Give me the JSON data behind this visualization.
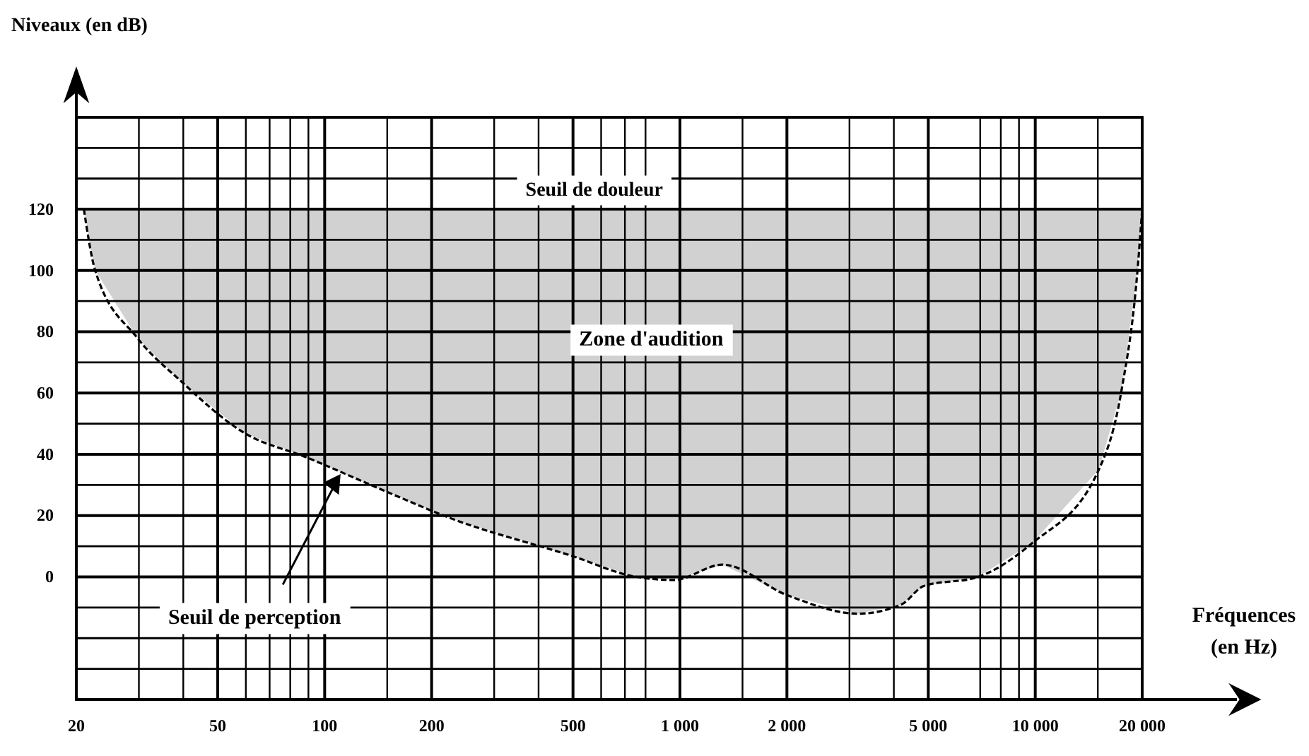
{
  "chart_data": {
    "type": "line",
    "xlabel": "Fréquences (en Hz)",
    "ylabel": "Niveaux (en dB)",
    "log": "x",
    "grid": true,
    "marker": "none",
    "line_style": "dashed",
    "xlim": [
      20,
      20000
    ],
    "ylim": [
      -40,
      150
    ],
    "xticks": [
      20,
      {
        "value": 30,
        "label": null
      },
      {
        "value": 40,
        "label": null
      },
      50,
      {
        "value": 60,
        "label": null
      },
      {
        "value": 70,
        "label": null
      },
      {
        "value": 80,
        "label": null
      },
      {
        "value": 90,
        "label": null
      },
      100,
      {
        "value": 150,
        "label": null
      },
      200,
      {
        "value": 300,
        "label": null
      },
      {
        "value": 400,
        "label": null
      },
      500,
      {
        "value": 600,
        "label": null
      },
      {
        "value": 700,
        "label": null
      },
      {
        "value": 800,
        "label": null
      },
      {
        "value": 1000,
        "label": "1 000"
      },
      {
        "value": 1500,
        "label": null
      },
      {
        "value": 2000,
        "label": "2 000"
      },
      {
        "value": 3000,
        "label": null
      },
      {
        "value": 4000,
        "label": null
      },
      {
        "value": 5000,
        "label": "5 000"
      },
      {
        "value": 7000,
        "label": null
      },
      {
        "value": 8000,
        "label": null
      },
      {
        "value": 9000,
        "label": null
      },
      {
        "value": 10000,
        "label": "10 000"
      },
      {
        "value": 15000,
        "label": null
      },
      {
        "value": 20000,
        "label": "20 000"
      }
    ],
    "yticks": [
      {
        "value": -30,
        "label": null
      },
      {
        "value": -20,
        "label": null
      },
      {
        "value": -10,
        "label": null
      },
      0,
      {
        "value": 10,
        "label": null
      },
      20,
      {
        "value": 30,
        "label": null
      },
      40,
      {
        "value": 50,
        "label": null
      },
      60,
      {
        "value": 70,
        "label": null
      },
      80,
      {
        "value": 90,
        "label": null
      },
      100,
      {
        "value": 110,
        "label": null
      },
      120,
      {
        "value": 130,
        "label": null
      },
      {
        "value": 140,
        "label": null
      }
    ],
    "series": [
      {
        "color": "#000000",
        "lower": [
          120,
          100,
          78,
          64,
          47,
          39,
          28,
          19,
          7,
          0,
          -1,
          4,
          -6,
          -12,
          -9,
          -3,
          0,
          11,
          35,
          61,
          100,
          120
        ],
        "x": [
          21,
          22.6,
          29.7,
          39.3,
          59.4,
          89,
          148,
          228,
          492,
          755,
          961,
          1316,
          2007,
          3175,
          4200,
          4850,
          6900,
          9800,
          15100,
          17500,
          19400,
          20000
        ],
        "values": [
          120,
          100,
          78,
          64,
          47,
          39,
          28,
          19,
          7,
          0,
          -1,
          4,
          -6,
          -12,
          -9,
          -3,
          0,
          11,
          35,
          61,
          100,
          120
        ],
        "upper": [
          120,
          120,
          120,
          120,
          120,
          120,
          120,
          120,
          120,
          120,
          120,
          120,
          120,
          120,
          120,
          120,
          120,
          120,
          120,
          120,
          120,
          120
        ]
      }
    ],
    "annotations": [
      "Seuil de douleur",
      "Zone d'audition",
      {
        "text": "Seuil de perception",
        "x": 110,
        "y": 33
      }
    ]
  }
}
